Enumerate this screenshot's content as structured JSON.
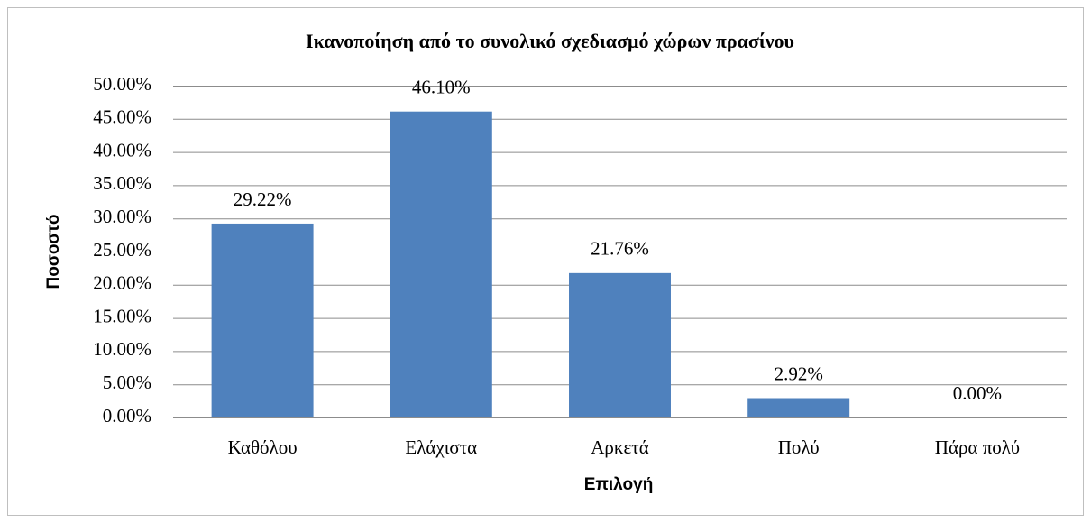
{
  "chart_data": {
    "type": "bar",
    "title": "Ικανοποίηση από το συνολικό σχεδιασμό χώρων πρασίνου",
    "x_label": "Επιλογή",
    "y_label": "Ποσοστό",
    "categories": [
      "Καθόλου",
      "Ελάχιστα",
      "Αρκετά",
      "Πολύ",
      "Πάρα πολύ"
    ],
    "values": [
      29.22,
      46.1,
      21.76,
      2.92,
      0
    ],
    "value_labels": [
      "29.22%",
      "46.10%",
      "21.76%",
      "2.92%",
      "0.00%"
    ],
    "color": "#4f81bd",
    "ylim": [
      0,
      50
    ],
    "yticks": [
      {
        "value": 0,
        "label": "0.00%"
      },
      {
        "value": 5,
        "label": "5.00%"
      },
      {
        "value": 10,
        "label": "10.00%"
      },
      {
        "value": 15,
        "label": "15.00%"
      },
      {
        "value": 20,
        "label": "20.00%"
      },
      {
        "value": 25,
        "label": "25.00%"
      },
      {
        "value": 30,
        "label": "30.00%"
      },
      {
        "value": 35,
        "label": "35.00%"
      },
      {
        "value": 40,
        "label": "40.00%"
      },
      {
        "value": 45,
        "label": "45.00%"
      },
      {
        "value": 50,
        "label": "50.00%"
      }
    ],
    "grid": true
  }
}
